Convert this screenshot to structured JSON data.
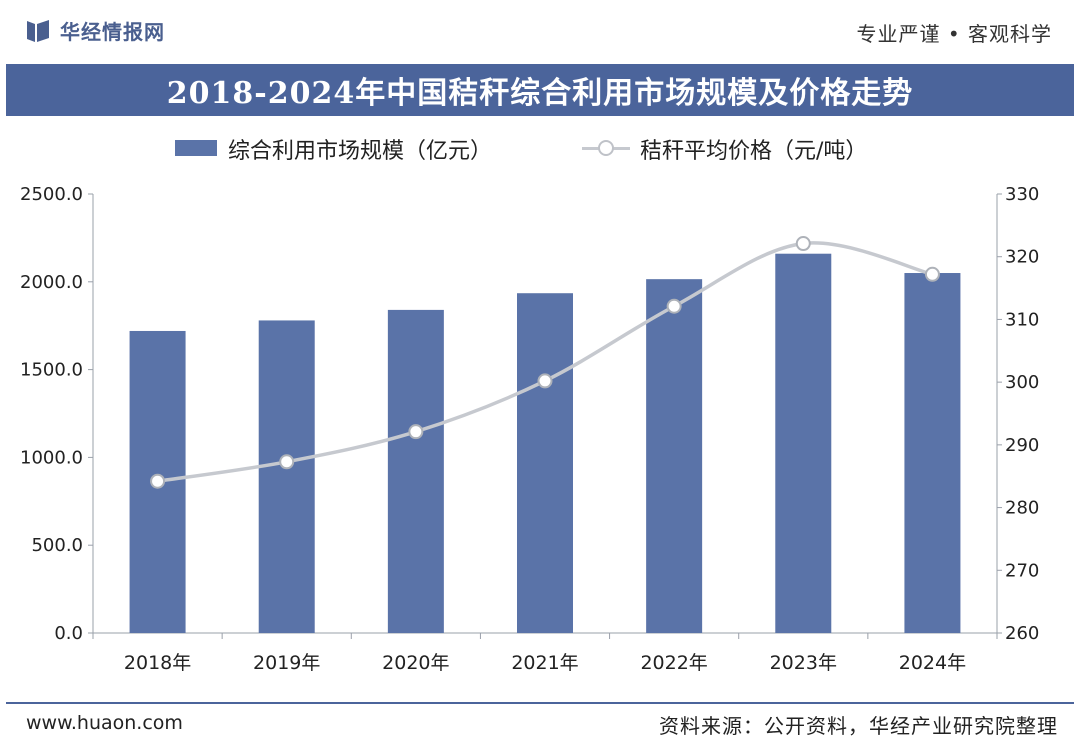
{
  "header": {
    "brand": "华经情报网",
    "slogan": "专业严谨 • 客观科学"
  },
  "title": "2018-2024年中国秸秆综合利用市场规模及价格走势",
  "legend": {
    "bar_label": "综合利用市场规模（亿元）",
    "line_label": "秸秆平均价格（元/吨）"
  },
  "footer": {
    "website": "www.huaon.com",
    "source": "资料来源：公开资料，华经产业研究院整理"
  },
  "colors": {
    "bar": "#5a73a8",
    "line": "#c6c9cf",
    "title_bg": "#4b649b"
  },
  "chart_data": {
    "type": "bar",
    "title": "2018-2024年中国秸秆综合利用市场规模及价格走势",
    "categories": [
      "2018年",
      "2019年",
      "2020年",
      "2021年",
      "2022年",
      "2023年",
      "2024年"
    ],
    "series": [
      {
        "name": "综合利用市场规模（亿元）",
        "type": "bar",
        "axis": "left",
        "values": [
          1720,
          1780,
          1840,
          1935,
          2015,
          2160,
          2050
        ]
      },
      {
        "name": "秸秆平均价格（元/吨）",
        "type": "line",
        "axis": "right",
        "values": [
          284.2,
          287.3,
          292.1,
          300.2,
          312.1,
          322.1,
          317.2
        ]
      }
    ],
    "ylim_left": [
      0,
      2500
    ],
    "yticks_left": [
      "0.0",
      "500.0",
      "1000.0",
      "1500.0",
      "2000.0",
      "2500.0"
    ],
    "ylim_right": [
      260,
      330
    ],
    "yticks_right": [
      "260",
      "270",
      "280",
      "290",
      "300",
      "310",
      "320",
      "330"
    ],
    "legend_position": "top"
  }
}
